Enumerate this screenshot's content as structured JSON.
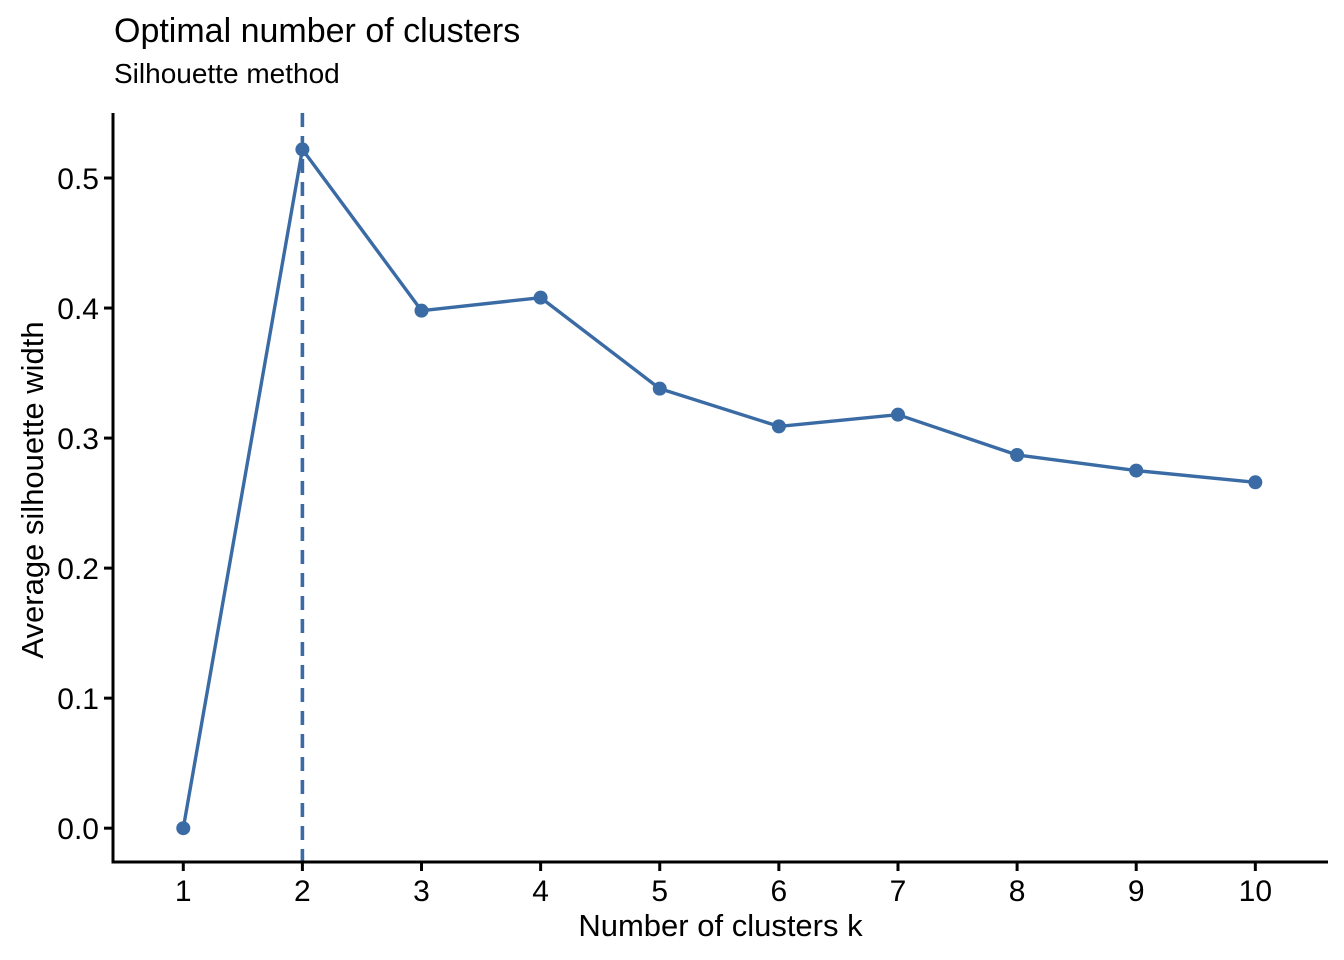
{
  "figure": {
    "background": "#ffffff",
    "text_color": "#000000"
  },
  "chart_data": {
    "type": "line",
    "title": "Optimal number of clusters",
    "subtitle": "Silhouette method",
    "xlabel": "Number of clusters k",
    "ylabel": "Average silhouette width",
    "x": [
      1,
      2,
      3,
      4,
      5,
      6,
      7,
      8,
      9,
      10
    ],
    "values": [
      0.0,
      0.522,
      0.398,
      0.408,
      0.338,
      0.309,
      0.318,
      0.287,
      0.275,
      0.266
    ],
    "series_color": "#3a6ba5",
    "marker": "circle",
    "vline": {
      "x": 2,
      "style": "dashed",
      "color": "#3a6ba5"
    },
    "xticks": {
      "values": [
        1,
        2,
        3,
        4,
        5,
        6,
        7,
        8,
        9,
        10
      ],
      "labels": [
        "1",
        "2",
        "3",
        "4",
        "5",
        "6",
        "7",
        "8",
        "9",
        "10"
      ]
    },
    "yticks": {
      "values": [
        0.0,
        0.1,
        0.2,
        0.3,
        0.4,
        0.5
      ],
      "labels": [
        "0.0",
        "0.1",
        "0.2",
        "0.3",
        "0.4",
        "0.5"
      ]
    },
    "xlim": [
      0.41,
      10.61
    ],
    "ylim": [
      -0.026,
      0.55
    ],
    "grid": false,
    "legend": "none",
    "axis_color": "#000000"
  }
}
